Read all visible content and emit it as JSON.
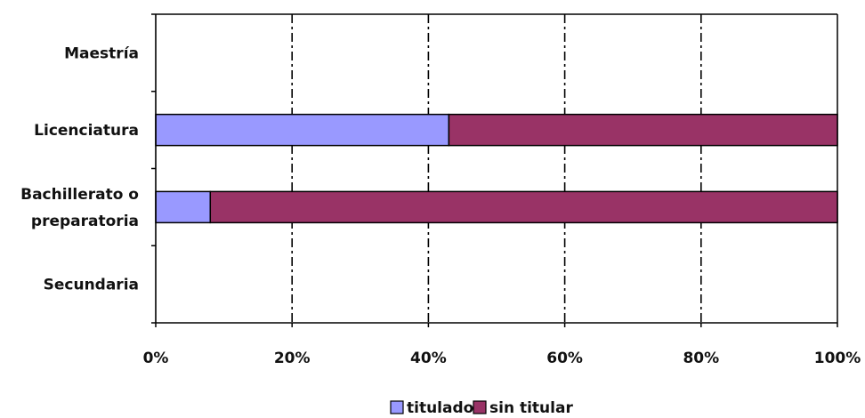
{
  "chart_data": {
    "type": "bar",
    "orientation": "horizontal",
    "stacked": true,
    "percent_stacked": true,
    "categories": [
      "Secundaria",
      "Bachillerato o preparatoria",
      "Licenciatura",
      "Maestría"
    ],
    "category_label_lines": [
      [
        "Secundaria"
      ],
      [
        "Bachillerato o",
        "preparatoria"
      ],
      [
        "Licenciatura"
      ],
      [
        "Maestría"
      ]
    ],
    "series": [
      {
        "name": "titulado",
        "color": "#9999FF",
        "values": [
          null,
          8,
          43,
          null
        ]
      },
      {
        "name": "sin titular",
        "color": "#993366",
        "values": [
          null,
          92,
          57,
          null
        ]
      }
    ],
    "x_ticks": [
      "0%",
      "20%",
      "40%",
      "60%",
      "80%",
      "100%"
    ],
    "xlim": [
      0,
      100
    ],
    "xlabel": "",
    "ylabel": "",
    "title": "",
    "grid": "vertical dash-dot",
    "legend": "bottom-center"
  },
  "legend": {
    "titulado": "titulado",
    "sin_titular": "sin titular"
  }
}
